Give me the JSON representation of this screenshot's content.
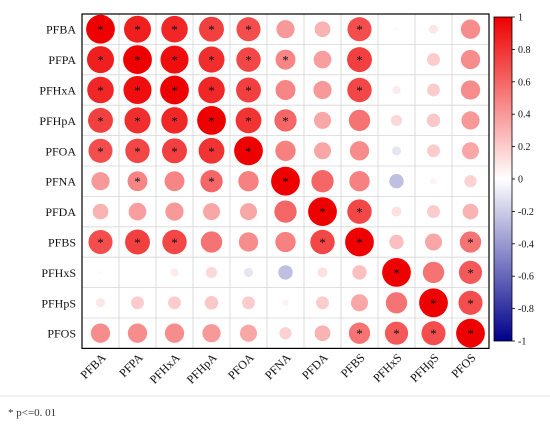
{
  "chart_data": {
    "type": "heatmap",
    "subtype": "correlation-circle-matrix",
    "variables": [
      "PFBA",
      "PFPA",
      "PFHxA",
      "PFHpA",
      "PFOA",
      "PFNA",
      "PFDA",
      "PFBS",
      "PFHxS",
      "PFHpS",
      "PFOS"
    ],
    "values": [
      [
        1.0,
        0.88,
        0.85,
        0.75,
        0.7,
        0.4,
        0.3,
        0.7,
        0.02,
        0.1,
        0.45
      ],
      [
        0.88,
        1.0,
        0.95,
        0.82,
        0.72,
        0.48,
        0.38,
        0.75,
        0.0,
        0.2,
        0.45
      ],
      [
        0.85,
        0.95,
        1.0,
        0.85,
        0.75,
        0.48,
        0.4,
        0.72,
        0.08,
        0.2,
        0.45
      ],
      [
        0.75,
        0.82,
        0.85,
        1.0,
        0.8,
        0.6,
        0.35,
        0.55,
        0.15,
        0.22,
        0.4
      ],
      [
        0.7,
        0.72,
        0.75,
        0.8,
        1.0,
        0.5,
        0.35,
        0.45,
        -0.1,
        0.2,
        0.35
      ],
      [
        0.4,
        0.48,
        0.48,
        0.6,
        0.5,
        1.0,
        0.6,
        0.5,
        -0.25,
        0.05,
        0.18
      ],
      [
        0.3,
        0.38,
        0.4,
        0.35,
        0.35,
        0.6,
        1.0,
        0.72,
        0.12,
        0.2,
        0.3
      ],
      [
        0.7,
        0.75,
        0.72,
        0.55,
        0.45,
        0.5,
        0.72,
        1.0,
        0.25,
        0.35,
        0.55
      ],
      [
        0.02,
        0.0,
        0.08,
        0.15,
        -0.1,
        -0.25,
        0.12,
        0.25,
        1.0,
        0.55,
        0.65
      ],
      [
        0.1,
        0.2,
        0.2,
        0.22,
        0.2,
        0.05,
        0.2,
        0.35,
        0.55,
        1.0,
        0.7
      ],
      [
        0.45,
        0.45,
        0.45,
        0.4,
        0.35,
        0.18,
        0.3,
        0.55,
        0.65,
        0.7,
        1.0
      ]
    ],
    "significant": [
      [
        1,
        1,
        1,
        1,
        1,
        0,
        0,
        1,
        0,
        0,
        0
      ],
      [
        1,
        1,
        1,
        1,
        1,
        1,
        0,
        1,
        0,
        0,
        0
      ],
      [
        1,
        1,
        1,
        1,
        1,
        0,
        0,
        1,
        0,
        0,
        0
      ],
      [
        1,
        1,
        1,
        1,
        1,
        1,
        0,
        0,
        0,
        0,
        0
      ],
      [
        1,
        1,
        1,
        1,
        1,
        0,
        0,
        0,
        0,
        0,
        0
      ],
      [
        0,
        1,
        0,
        1,
        0,
        1,
        0,
        0,
        0,
        0,
        0
      ],
      [
        0,
        0,
        0,
        0,
        0,
        0,
        1,
        1,
        0,
        0,
        0
      ],
      [
        1,
        1,
        1,
        0,
        0,
        0,
        1,
        1,
        0,
        0,
        1
      ],
      [
        0,
        0,
        0,
        0,
        0,
        0,
        0,
        0,
        1,
        0,
        1
      ],
      [
        0,
        0,
        0,
        0,
        0,
        0,
        0,
        0,
        0,
        1,
        1
      ],
      [
        0,
        0,
        0,
        0,
        0,
        0,
        0,
        1,
        1,
        1,
        1
      ]
    ],
    "color_scale": {
      "min": -1,
      "max": 1,
      "low": "#00008b",
      "mid": "#ffffff",
      "high": "#ee0000"
    },
    "colorbar_ticks": [
      "1",
      "0.8",
      "0.6",
      "0.4",
      "0.2",
      "0",
      "-0.2",
      "-0.4",
      "-0.6",
      "-0.8",
      "-1"
    ],
    "colorbar_tick_values": [
      1,
      0.8,
      0.6,
      0.4,
      0.2,
      0,
      -0.2,
      -0.4,
      -0.6,
      -0.8,
      -1
    ],
    "legend_placement": "right",
    "grid": true,
    "significance_marker": "*",
    "footnote": "* p<=0. 01"
  }
}
